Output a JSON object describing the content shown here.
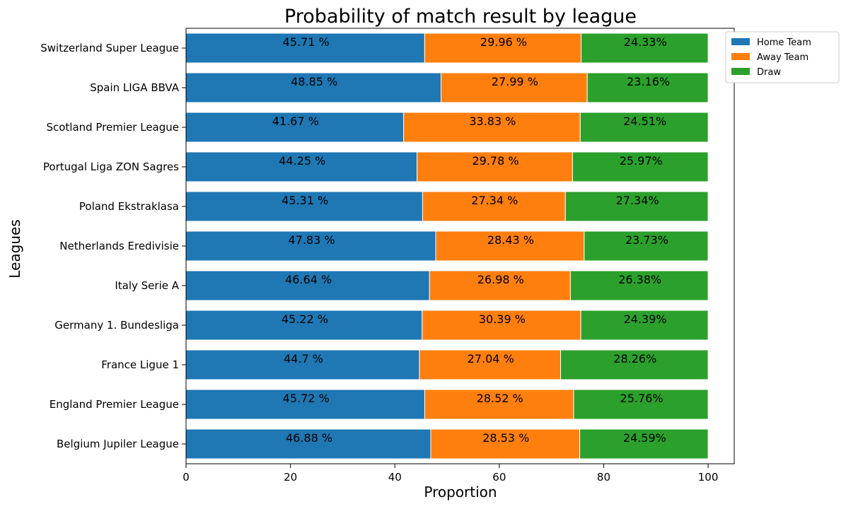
{
  "chart_data": {
    "type": "bar",
    "orientation": "horizontal",
    "stacked": true,
    "title": "Probability of match result by league",
    "xlabel": "Proportion",
    "ylabel": "Leagues",
    "xlim": [
      0,
      105
    ],
    "xticks": [
      0,
      20,
      40,
      60,
      80,
      100
    ],
    "grid": false,
    "legend_position": "upper-right-outside",
    "categories": [
      "Belgium Jupiler League",
      "England Premier League",
      "France Ligue 1",
      "Germany 1. Bundesliga",
      "Italy Serie A",
      "Netherlands Eredivisie",
      "Poland Ekstraklasa",
      "Portugal Liga ZON Sagres",
      "Scotland Premier League",
      "Spain LIGA BBVA",
      "Switzerland Super League"
    ],
    "series": [
      {
        "name": "Home Team",
        "color": "#1f77b4",
        "values": [
          46.88,
          45.72,
          44.7,
          45.22,
          46.64,
          47.83,
          45.31,
          44.25,
          41.67,
          48.85,
          45.71
        ],
        "labels": [
          "46.88 %",
          "45.72 %",
          "44.7 %",
          "45.22 %",
          "46.64 %",
          "47.83 %",
          "45.31 %",
          "44.25 %",
          "41.67 %",
          "48.85 %",
          "45.71 %"
        ]
      },
      {
        "name": "Away Team",
        "color": "#ff7f0e",
        "values": [
          28.53,
          28.52,
          27.04,
          30.39,
          26.98,
          28.43,
          27.34,
          29.78,
          33.83,
          27.99,
          29.96
        ],
        "labels": [
          "28.53 %",
          "28.52 %",
          "27.04 %",
          "30.39 %",
          "26.98 %",
          "28.43 %",
          "27.34 %",
          "29.78 %",
          "33.83 %",
          "27.99 %",
          "29.96 %"
        ]
      },
      {
        "name": "Draw",
        "color": "#2ca02c",
        "values": [
          24.59,
          25.76,
          28.26,
          24.39,
          26.38,
          23.73,
          27.34,
          25.97,
          24.51,
          23.16,
          24.33
        ],
        "labels": [
          "24.59%",
          "25.76%",
          "28.26%",
          "24.39%",
          "26.38%",
          "23.73%",
          "27.34%",
          "25.97%",
          "24.51%",
          "23.16%",
          "24.33%"
        ]
      }
    ]
  }
}
